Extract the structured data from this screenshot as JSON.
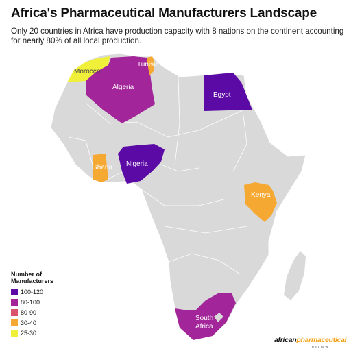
{
  "title": "Africa's Pharmaceutical Manufacturers Landscape",
  "subtitle": "Only 20 countries in Africa have production capacity with 8 nations on the continent accounting for nearly 80% of all local production.",
  "colors": {
    "land": "#d9d9d9",
    "border": "#ffffff",
    "tier_100_120": "#5b0aa6",
    "tier_80_100": "#a3259a",
    "tier_80_90": "#d9556d",
    "tier_30_40": "#f5a932",
    "tier_25_30": "#f0f03a"
  },
  "countries": [
    {
      "name": "Morocco",
      "tier": "25-30"
    },
    {
      "name": "Algeria",
      "tier": "80-100"
    },
    {
      "name": "Tunisia",
      "tier": "30-40"
    },
    {
      "name": "Egypt",
      "tier": "100-120"
    },
    {
      "name": "Nigeria",
      "tier": "100-120"
    },
    {
      "name": "Ghana",
      "tier": "30-40"
    },
    {
      "name": "Kenya",
      "tier": "30-40"
    },
    {
      "name": "South Africa",
      "label_lines": [
        "South",
        "Africa"
      ],
      "tier": "80-100"
    }
  ],
  "legend": {
    "title": "Number of Manufacturers",
    "items": [
      {
        "label": "100-120",
        "color": "#5b0aa6"
      },
      {
        "label": "80-100",
        "color": "#a3259a"
      },
      {
        "label": "80-90",
        "color": "#d9556d"
      },
      {
        "label": "30-40",
        "color": "#f5a932"
      },
      {
        "label": "25-30",
        "color": "#f0f03a"
      }
    ]
  },
  "brand": {
    "part1": "african",
    "part2": "pharmaceutical",
    "sub": "REVIEW"
  }
}
